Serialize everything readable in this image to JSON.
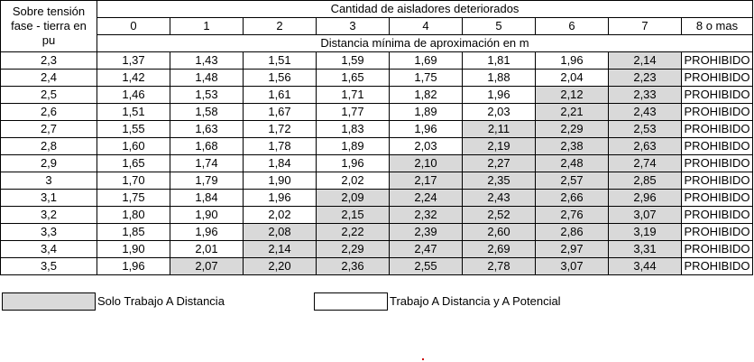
{
  "header": {
    "side_label": [
      "Sobre tensión",
      "fase - tierra en",
      "pu"
    ],
    "group_title": "Cantidad de aisladores deteriorados",
    "columns": [
      "0",
      "1",
      "2",
      "3",
      "4",
      "5",
      "6",
      "7",
      "8 o mas"
    ],
    "subtitle": "Distancia mínima de aproximación en m"
  },
  "rows": [
    {
      "pu": "2,3",
      "values": [
        "1,37",
        "1,43",
        "1,51",
        "1,59",
        "1,69",
        "1,81",
        "1,96",
        "2,14",
        "PROHIBIDO"
      ],
      "shade_from": 7
    },
    {
      "pu": "2,4",
      "values": [
        "1,42",
        "1,48",
        "1,56",
        "1,65",
        "1,75",
        "1,88",
        "2,04",
        "2,23",
        "PROHIBIDO"
      ],
      "shade_from": 7
    },
    {
      "pu": "2,5",
      "values": [
        "1,46",
        "1,53",
        "1,61",
        "1,71",
        "1,82",
        "1,96",
        "2,12",
        "2,33",
        "PROHIBIDO"
      ],
      "shade_from": 6
    },
    {
      "pu": "2,6",
      "values": [
        "1,51",
        "1,58",
        "1,67",
        "1,77",
        "1,89",
        "2,03",
        "2,21",
        "2,43",
        "PROHIBIDO"
      ],
      "shade_from": 6
    },
    {
      "pu": "2,7",
      "values": [
        "1,55",
        "1,63",
        "1,72",
        "1,83",
        "1,96",
        "2,11",
        "2,29",
        "2,53",
        "PROHIBIDO"
      ],
      "shade_from": 5
    },
    {
      "pu": "2,8",
      "values": [
        "1,60",
        "1,68",
        "1,78",
        "1,89",
        "2,03",
        "2,19",
        "2,38",
        "2,63",
        "PROHIBIDO"
      ],
      "shade_from": 5
    },
    {
      "pu": "2,9",
      "values": [
        "1,65",
        "1,74",
        "1,84",
        "1,96",
        "2,10",
        "2,27",
        "2,48",
        "2,74",
        "PROHIBIDO"
      ],
      "shade_from": 4
    },
    {
      "pu": "3",
      "values": [
        "1,70",
        "1,79",
        "1,90",
        "2,02",
        "2,17",
        "2,35",
        "2,57",
        "2,85",
        "PROHIBIDO"
      ],
      "shade_from": 4
    },
    {
      "pu": "3,1",
      "values": [
        "1,75",
        "1,84",
        "1,96",
        "2,09",
        "2,24",
        "2,43",
        "2,66",
        "2,96",
        "PROHIBIDO"
      ],
      "shade_from": 3
    },
    {
      "pu": "3,2",
      "values": [
        "1,80",
        "1,90",
        "2,02",
        "2,15",
        "2,32",
        "2,52",
        "2,76",
        "3,07",
        "PROHIBIDO"
      ],
      "shade_from": 3
    },
    {
      "pu": "3,3",
      "values": [
        "1,85",
        "1,96",
        "2,08",
        "2,22",
        "2,39",
        "2,60",
        "2,86",
        "3,19",
        "PROHIBIDO"
      ],
      "shade_from": 2
    },
    {
      "pu": "3,4",
      "values": [
        "1,90",
        "2,01",
        "2,14",
        "2,29",
        "2,47",
        "2,69",
        "2,97",
        "3,31",
        "PROHIBIDO"
      ],
      "shade_from": 2
    },
    {
      "pu": "3,5",
      "values": [
        "1,96",
        "2,07",
        "2,20",
        "2,36",
        "2,55",
        "2,78",
        "3,07",
        "3,44",
        "PROHIBIDO"
      ],
      "shade_from": 1
    }
  ],
  "legend": {
    "shaded_label": "Solo Trabajo A Distancia",
    "plain_label": "Trabajo A Distancia y A Potencial"
  },
  "colors": {
    "shaded": "#d9d9d9",
    "border": "#000000",
    "background": "#ffffff"
  }
}
